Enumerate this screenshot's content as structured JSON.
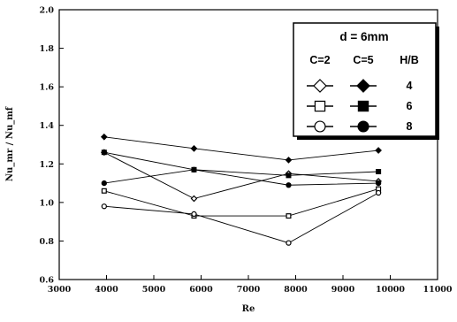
{
  "chart_data": {
    "type": "line",
    "title": "",
    "xlabel": "Re",
    "ylabel": "Nu_mr / Nu_mf",
    "xlim": [
      3000,
      11000
    ],
    "ylim": [
      0.6,
      2.0
    ],
    "x_ticks": [
      "3000",
      "4000",
      "5000",
      "6000",
      "7000",
      "8000",
      "9000",
      "10000",
      "11000"
    ],
    "y_ticks": [
      "0.6",
      "0.8",
      "1.0",
      "1.2",
      "1.4",
      "1.6",
      "1.8",
      "2.0"
    ],
    "grid": false,
    "legend_placement": "top-right",
    "legend": {
      "title": "d = 6mm",
      "col1_header": "C=2",
      "col2_header": "C=5",
      "col3_header": "H/B",
      "rows": [
        "4",
        "6",
        "8"
      ]
    },
    "series": [
      {
        "name": "C=2, H/B=4",
        "marker": "diamond",
        "filled": false,
        "x": [
          3950,
          5850,
          7850,
          9750
        ],
        "y": [
          1.26,
          1.02,
          1.15,
          1.11
        ]
      },
      {
        "name": "C=2, H/B=6",
        "marker": "square",
        "filled": false,
        "x": [
          3950,
          5850,
          7850,
          9750
        ],
        "y": [
          1.06,
          0.93,
          0.93,
          1.07
        ]
      },
      {
        "name": "C=2, H/B=8",
        "marker": "circle",
        "filled": false,
        "x": [
          3950,
          5850,
          7850,
          9750
        ],
        "y": [
          0.98,
          0.94,
          0.79,
          1.05
        ]
      },
      {
        "name": "C=5, H/B=4",
        "marker": "diamond",
        "filled": true,
        "x": [
          3950,
          5850,
          7850,
          9750
        ],
        "y": [
          1.34,
          1.28,
          1.22,
          1.27
        ]
      },
      {
        "name": "C=5, H/B=6",
        "marker": "square",
        "filled": true,
        "x": [
          3950,
          5850,
          7850,
          9750
        ],
        "y": [
          1.26,
          1.17,
          1.14,
          1.16
        ]
      },
      {
        "name": "C=5, H/B=8",
        "marker": "circle",
        "filled": true,
        "x": [
          3950,
          5850,
          7850,
          9750
        ],
        "y": [
          1.1,
          1.17,
          1.09,
          1.1
        ]
      }
    ]
  }
}
